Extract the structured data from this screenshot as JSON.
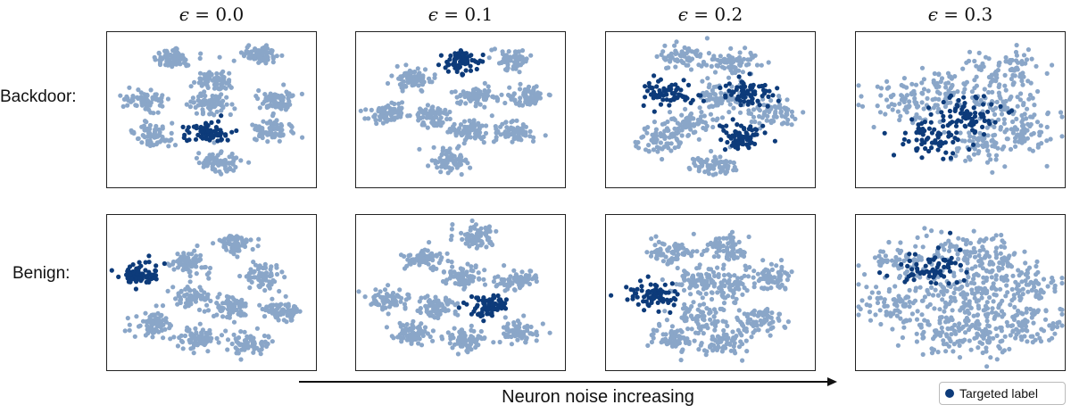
{
  "chart_data": {
    "type": "scatter",
    "column_titles": [
      {
        "symbol": "ϵ",
        "rest": " = 0.0"
      },
      {
        "symbol": "ϵ",
        "rest": " = 0.1"
      },
      {
        "symbol": "ϵ",
        "rest": " = 0.2"
      },
      {
        "symbol": "ϵ",
        "rest": " = 0.3"
      }
    ],
    "row_labels": [
      "Backdoor:",
      "Benign:"
    ],
    "axis_label": "Neuron noise increasing",
    "legend": [
      {
        "label": "Targeted label",
        "color": "#0d3b7a"
      }
    ],
    "colors": {
      "targeted": "#0d3b7a",
      "other": "#8aa6c8"
    },
    "grid": false,
    "panels": [
      {
        "row": "Backdoor:",
        "epsilon": 0.0,
        "clusters": [
          {
            "x": 0.3,
            "y": 0.88,
            "t": 0
          },
          {
            "x": 0.75,
            "y": 0.9,
            "t": 0
          },
          {
            "x": 0.52,
            "y": 0.71,
            "t": 0
          },
          {
            "x": 0.15,
            "y": 0.57,
            "t": 0
          },
          {
            "x": 0.5,
            "y": 0.54,
            "t": 0
          },
          {
            "x": 0.83,
            "y": 0.57,
            "t": 0
          },
          {
            "x": 0.2,
            "y": 0.32,
            "t": 0
          },
          {
            "x": 0.48,
            "y": 0.34,
            "t": 1
          },
          {
            "x": 0.82,
            "y": 0.35,
            "t": 0
          },
          {
            "x": 0.54,
            "y": 0.11,
            "t": 0
          }
        ]
      },
      {
        "row": "Backdoor:",
        "epsilon": 0.1,
        "clusters": [
          {
            "x": 0.5,
            "y": 0.85,
            "t": 1
          },
          {
            "x": 0.77,
            "y": 0.86,
            "t": 0
          },
          {
            "x": 0.25,
            "y": 0.73,
            "t": 0
          },
          {
            "x": 0.58,
            "y": 0.59,
            "t": 0
          },
          {
            "x": 0.85,
            "y": 0.6,
            "t": 0
          },
          {
            "x": 0.12,
            "y": 0.48,
            "t": 0
          },
          {
            "x": 0.36,
            "y": 0.45,
            "t": 0
          },
          {
            "x": 0.55,
            "y": 0.34,
            "t": 0
          },
          {
            "x": 0.78,
            "y": 0.33,
            "t": 0
          },
          {
            "x": 0.45,
            "y": 0.13,
            "t": 0
          }
        ]
      },
      {
        "row": "Backdoor:",
        "epsilon": 0.2,
        "clusters": [
          {
            "x": 0.35,
            "y": 0.88,
            "t": 0
          },
          {
            "x": 0.62,
            "y": 0.84,
            "t": 0
          },
          {
            "x": 0.28,
            "y": 0.62,
            "t": 1
          },
          {
            "x": 0.56,
            "y": 0.6,
            "t": 0
          },
          {
            "x": 0.7,
            "y": 0.62,
            "t": 1
          },
          {
            "x": 0.82,
            "y": 0.48,
            "t": 0
          },
          {
            "x": 0.4,
            "y": 0.4,
            "t": 0
          },
          {
            "x": 0.66,
            "y": 0.3,
            "t": 1
          },
          {
            "x": 0.24,
            "y": 0.28,
            "t": 0
          },
          {
            "x": 0.52,
            "y": 0.1,
            "t": 0
          }
        ]
      },
      {
        "row": "Backdoor:",
        "epsilon": 0.3,
        "clusters": [
          {
            "x": 0.35,
            "y": 0.3,
            "t": 1
          },
          {
            "x": 0.55,
            "y": 0.45,
            "t": 1
          },
          {
            "x": 0.72,
            "y": 0.55,
            "t": 0
          },
          {
            "x": 0.42,
            "y": 0.65,
            "t": 0
          },
          {
            "x": 0.75,
            "y": 0.8,
            "t": 0
          },
          {
            "x": 0.6,
            "y": 0.25,
            "t": 0
          },
          {
            "x": 0.85,
            "y": 0.35,
            "t": 0
          },
          {
            "x": 0.2,
            "y": 0.55,
            "t": 0
          }
        ]
      },
      {
        "row": "Benign:",
        "epsilon": 0.0,
        "clusters": [
          {
            "x": 0.12,
            "y": 0.63,
            "t": 1
          },
          {
            "x": 0.62,
            "y": 0.86,
            "t": 0
          },
          {
            "x": 0.38,
            "y": 0.72,
            "t": 0
          },
          {
            "x": 0.76,
            "y": 0.62,
            "t": 0
          },
          {
            "x": 0.4,
            "y": 0.47,
            "t": 0
          },
          {
            "x": 0.6,
            "y": 0.4,
            "t": 0
          },
          {
            "x": 0.87,
            "y": 0.37,
            "t": 0
          },
          {
            "x": 0.2,
            "y": 0.27,
            "t": 0
          },
          {
            "x": 0.42,
            "y": 0.17,
            "t": 0
          },
          {
            "x": 0.7,
            "y": 0.13,
            "t": 0
          }
        ]
      },
      {
        "row": "Benign:",
        "epsilon": 0.1,
        "clusters": [
          {
            "x": 0.58,
            "y": 0.9,
            "t": 0
          },
          {
            "x": 0.3,
            "y": 0.74,
            "t": 0
          },
          {
            "x": 0.52,
            "y": 0.62,
            "t": 0
          },
          {
            "x": 0.8,
            "y": 0.59,
            "t": 0
          },
          {
            "x": 0.13,
            "y": 0.45,
            "t": 0
          },
          {
            "x": 0.38,
            "y": 0.4,
            "t": 0
          },
          {
            "x": 0.65,
            "y": 0.4,
            "t": 1
          },
          {
            "x": 0.25,
            "y": 0.2,
            "t": 0
          },
          {
            "x": 0.52,
            "y": 0.16,
            "t": 0
          },
          {
            "x": 0.8,
            "y": 0.22,
            "t": 0
          }
        ]
      },
      {
        "row": "Benign:",
        "epsilon": 0.2,
        "clusters": [
          {
            "x": 0.3,
            "y": 0.8,
            "t": 0
          },
          {
            "x": 0.58,
            "y": 0.83,
            "t": 0
          },
          {
            "x": 0.18,
            "y": 0.48,
            "t": 1
          },
          {
            "x": 0.42,
            "y": 0.58,
            "t": 0
          },
          {
            "x": 0.58,
            "y": 0.55,
            "t": 0
          },
          {
            "x": 0.83,
            "y": 0.6,
            "t": 0
          },
          {
            "x": 0.45,
            "y": 0.33,
            "t": 0
          },
          {
            "x": 0.75,
            "y": 0.3,
            "t": 0
          },
          {
            "x": 0.3,
            "y": 0.17,
            "t": 0
          },
          {
            "x": 0.58,
            "y": 0.14,
            "t": 0
          }
        ]
      },
      {
        "row": "Benign:",
        "epsilon": 0.3,
        "clusters": [
          {
            "x": 0.55,
            "y": 0.82,
            "t": 0
          },
          {
            "x": 0.35,
            "y": 0.68,
            "t": 1
          },
          {
            "x": 0.2,
            "y": 0.72,
            "t": 0
          },
          {
            "x": 0.7,
            "y": 0.7,
            "t": 0
          },
          {
            "x": 0.85,
            "y": 0.55,
            "t": 0
          },
          {
            "x": 0.15,
            "y": 0.4,
            "t": 0
          },
          {
            "x": 0.45,
            "y": 0.5,
            "t": 0
          },
          {
            "x": 0.6,
            "y": 0.4,
            "t": 0
          },
          {
            "x": 0.38,
            "y": 0.2,
            "t": 0
          },
          {
            "x": 0.62,
            "y": 0.18,
            "t": 0
          },
          {
            "x": 0.85,
            "y": 0.25,
            "t": 0
          }
        ]
      }
    ]
  }
}
